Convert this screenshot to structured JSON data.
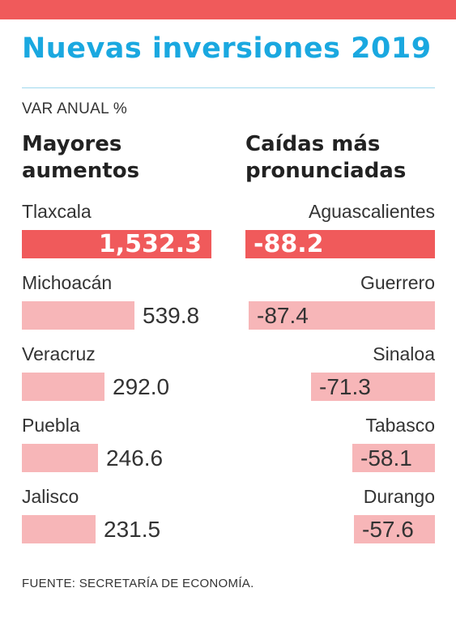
{
  "header": {
    "title": "Nuevas inversiones 2019",
    "subtitle": "VAR ANUAL %",
    "accent_color": "#f05a5b",
    "title_color": "#1aa8e0"
  },
  "left_heading": [
    "Mayores",
    "aumentos"
  ],
  "right_heading": [
    "Caídas más",
    "pronunciadas"
  ],
  "source": "FUENTE: SECRETARÍA DE ECONOMÍA.",
  "chart_data": [
    {
      "type": "bar",
      "title": "Mayores aumentos",
      "categories": [
        "Tlaxcala",
        "Michoacán",
        "Veracruz",
        "Puebla",
        "Jalisco"
      ],
      "values": [
        1532.3,
        539.8,
        292.0,
        246.6,
        231.5
      ],
      "value_labels": [
        "1,532.3",
        "539.8",
        "292.0",
        "246.6",
        "231.5"
      ],
      "highlight_color": "#f05a5b",
      "bar_color": "#f7b6b8"
    },
    {
      "type": "bar",
      "title": "Caídas más pronunciadas",
      "categories": [
        "Aguascalientes",
        "Guerrero",
        "Sinaloa",
        "Tabasco",
        "Durango"
      ],
      "values": [
        -88.2,
        -87.4,
        -71.3,
        -58.1,
        -57.6
      ],
      "value_labels": [
        "-88.2",
        "-87.4",
        "-71.3",
        "-58.1",
        "-57.6"
      ],
      "highlight_color": "#f05a5b",
      "bar_color": "#f7b6b8"
    }
  ]
}
